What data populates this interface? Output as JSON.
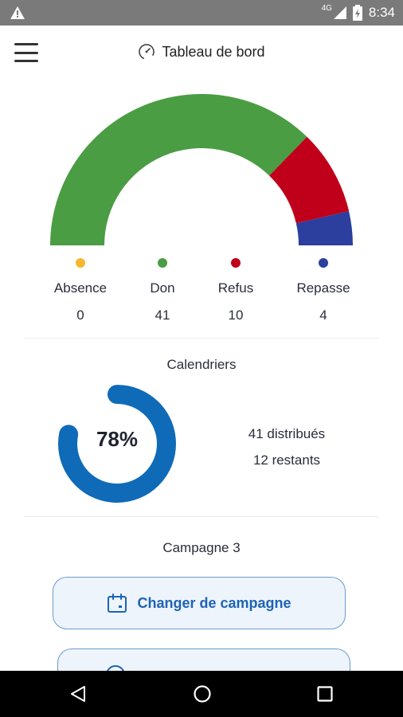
{
  "status_bar": {
    "time": "8:34",
    "network": "4G",
    "icons": [
      "warning-icon",
      "signal-icon",
      "battery-icon"
    ]
  },
  "app_bar": {
    "title": "Tableau de bord",
    "icons": [
      "menu-icon",
      "speedometer-icon"
    ]
  },
  "chart_data": {
    "type": "pie",
    "categories": [
      "Absence",
      "Don",
      "Refus",
      "Repasse"
    ],
    "values": [
      0,
      41,
      10,
      4
    ],
    "colors": [
      "#f5b82e",
      "#4a9d43",
      "#c0001a",
      "#2c3e9e"
    ]
  },
  "calendriers": {
    "title": "Calendriers",
    "percent_label": "78%",
    "percent": 78,
    "distributed_label": "41 distribués",
    "remaining_label": "12 restants",
    "ring_color": "#0f6bb8"
  },
  "campaign": {
    "title": "Campagne 3",
    "change_button_label": "Changer de campagne",
    "change_button_icon": "calendar-icon"
  },
  "nav_bar": {
    "icons": [
      "back-icon",
      "home-icon",
      "recent-apps-icon"
    ]
  }
}
